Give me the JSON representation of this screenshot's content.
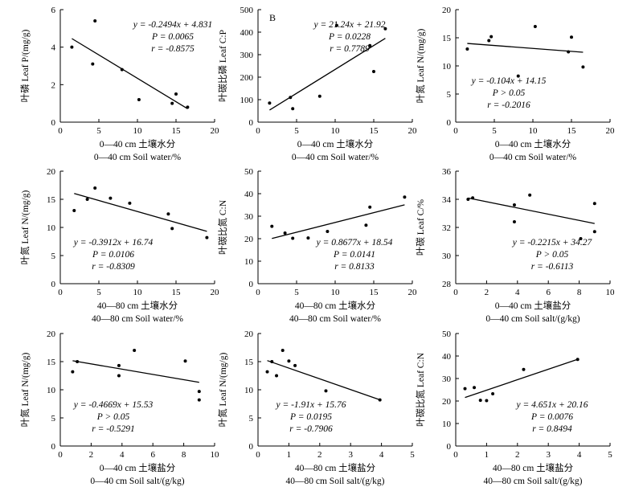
{
  "chart_data": [
    {
      "type": "scatter",
      "tag": "",
      "ylabel": "叶磷 Leaf P/(mg/g)",
      "xlabel_cn": "0—40 cm 土壤水分",
      "xlabel_en": "0—40 cm Soil water/%",
      "xlim": [
        0,
        20
      ],
      "ylim": [
        0,
        6
      ],
      "xticks": [
        0,
        5,
        10,
        15,
        20
      ],
      "yticks": [
        0,
        2,
        4,
        6
      ],
      "points": [
        [
          1.5,
          4.0
        ],
        [
          4.2,
          3.1
        ],
        [
          4.5,
          5.4
        ],
        [
          8.0,
          2.8
        ],
        [
          10.2,
          1.2
        ],
        [
          14.5,
          1.0
        ],
        [
          15.0,
          1.5
        ],
        [
          16.5,
          0.8
        ]
      ],
      "fit": {
        "slope": -0.2494,
        "intercept": 4.831,
        "x": [
          1.5,
          16.5
        ]
      },
      "stats": [
        "y = -0.2494x + 4.831",
        "P = 0.0065",
        "r = -0.8575"
      ],
      "stats_pos": "top-right"
    },
    {
      "type": "scatter",
      "tag": "B",
      "ylabel": "叶碳比磷 Leaf C:P",
      "xlabel_cn": "0—40 cm 土壤水分",
      "xlabel_en": "0—40 cm Soil water/%",
      "xlim": [
        0,
        20
      ],
      "ylim": [
        0,
        500
      ],
      "xticks": [
        0,
        5,
        10,
        15,
        20
      ],
      "yticks": [
        0,
        100,
        200,
        300,
        400,
        500
      ],
      "points": [
        [
          1.5,
          85
        ],
        [
          4.2,
          110
        ],
        [
          4.5,
          60
        ],
        [
          8.0,
          115
        ],
        [
          10.2,
          430
        ],
        [
          14.5,
          340
        ],
        [
          15.0,
          225
        ],
        [
          16.5,
          415
        ]
      ],
      "fit": {
        "slope": 21.24,
        "intercept": 21.92,
        "x": [
          1.5,
          16.5
        ]
      },
      "stats": [
        "y = 21.24x + 21.92",
        "P = 0.0228",
        "r = 0.7789"
      ],
      "stats_pos": "top-left"
    },
    {
      "type": "scatter",
      "tag": "",
      "ylabel": "叶氮 Leaf N/(mg/g)",
      "xlabel_cn": "0—40 cm 土壤水分",
      "xlabel_en": "0—40 cm Soil water/%",
      "xlim": [
        0,
        20
      ],
      "ylim": [
        0,
        20
      ],
      "xticks": [
        0,
        5,
        10,
        15,
        20
      ],
      "yticks": [
        0,
        5,
        10,
        15,
        20
      ],
      "points": [
        [
          1.5,
          13.0
        ],
        [
          4.3,
          14.5
        ],
        [
          4.6,
          15.2
        ],
        [
          8.1,
          8.2
        ],
        [
          10.3,
          17.0
        ],
        [
          14.6,
          12.5
        ],
        [
          15.0,
          15.1
        ],
        [
          16.5,
          9.8
        ]
      ],
      "fit": {
        "slope": -0.104,
        "intercept": 14.15,
        "x": [
          1.5,
          16.5
        ]
      },
      "stats": [
        "y = -0.104x + 14.15",
        "P > 0.05",
        "r = -0.2016"
      ],
      "stats_pos": "bottom-left"
    },
    {
      "type": "scatter",
      "tag": "",
      "ylabel": "叶氮 Leaf N/(mg/g)",
      "xlabel_cn": "40—80 cm 土壤水分",
      "xlabel_en": "40—80 cm Soil water/%",
      "xlim": [
        0,
        20
      ],
      "ylim": [
        0,
        20
      ],
      "xticks": [
        0,
        5,
        10,
        15,
        20
      ],
      "yticks": [
        0,
        5,
        10,
        15,
        20
      ],
      "points": [
        [
          1.8,
          13.0
        ],
        [
          3.5,
          15.0
        ],
        [
          4.5,
          17.0
        ],
        [
          6.5,
          15.2
        ],
        [
          9.0,
          14.3
        ],
        [
          14.0,
          12.4
        ],
        [
          14.5,
          9.8
        ],
        [
          19.0,
          8.2
        ]
      ],
      "fit": {
        "slope": -0.3912,
        "intercept": 16.74,
        "x": [
          1.8,
          19.0
        ]
      },
      "stats": [
        "y = -0.3912x + 16.74",
        "P = 0.0106",
        "r = -0.8309"
      ],
      "stats_pos": "bottom-left"
    },
    {
      "type": "scatter",
      "tag": "",
      "ylabel": "叶碳比氮 C:N",
      "xlabel_cn": "40—80 cm 土壤水分",
      "xlabel_en": "40—80 cm Soil water/%",
      "xlim": [
        0,
        20
      ],
      "ylim": [
        0,
        50
      ],
      "xticks": [
        0,
        5,
        10,
        15,
        20
      ],
      "yticks": [
        0,
        10,
        20,
        30,
        40,
        50
      ],
      "points": [
        [
          1.8,
          25.5
        ],
        [
          3.5,
          22.5
        ],
        [
          4.5,
          20.2
        ],
        [
          6.5,
          20.3
        ],
        [
          9.0,
          23.2
        ],
        [
          14.0,
          26.0
        ],
        [
          14.5,
          34.0
        ],
        [
          19.0,
          38.5
        ]
      ],
      "fit": {
        "slope": 0.8677,
        "intercept": 18.54,
        "x": [
          1.8,
          19.0
        ]
      },
      "stats": [
        "y = 0.8677x + 18.54",
        "P = 0.0141",
        "r = 0.8133"
      ],
      "stats_pos": "bottom-right"
    },
    {
      "type": "scatter",
      "tag": "",
      "ylabel": "叶碳 Leaf C/%",
      "xlabel_cn": "0—40 cm 土壤盐分",
      "xlabel_en": "0—40 cm Soil salt/(g/kg)",
      "xlim": [
        0,
        10
      ],
      "ylim": [
        28,
        36
      ],
      "xticks": [
        0,
        2,
        4,
        6,
        8,
        10
      ],
      "yticks": [
        28,
        30,
        32,
        34,
        36
      ],
      "points": [
        [
          0.8,
          34.0
        ],
        [
          1.1,
          34.1
        ],
        [
          3.8,
          33.6
        ],
        [
          3.8,
          32.4
        ],
        [
          4.8,
          34.3
        ],
        [
          8.1,
          31.2
        ],
        [
          9.0,
          33.7
        ],
        [
          9.0,
          31.7
        ]
      ],
      "fit": {
        "slope": -0.2215,
        "intercept": 34.27,
        "x": [
          0.8,
          9.0
        ]
      },
      "stats": [
        "y = -0.2215x + 34.27",
        "P > 0.05",
        "r = -0.6113"
      ],
      "stats_pos": "bottom-right"
    },
    {
      "type": "scatter",
      "tag": "",
      "ylabel": "叶氮 Leaf N/(mg/g)",
      "xlabel_cn": "0—40 cm 土壤盐分",
      "xlabel_en": "0—40 cm Soil salt/(g/kg)",
      "xlim": [
        0,
        10
      ],
      "ylim": [
        0,
        20
      ],
      "xticks": [
        0,
        2,
        4,
        6,
        8,
        10
      ],
      "yticks": [
        0,
        5,
        10,
        15,
        20
      ],
      "points": [
        [
          0.8,
          13.2
        ],
        [
          1.1,
          15.0
        ],
        [
          3.8,
          14.3
        ],
        [
          3.8,
          12.5
        ],
        [
          4.8,
          17.0
        ],
        [
          8.1,
          15.1
        ],
        [
          9.0,
          9.7
        ],
        [
          9.0,
          8.2
        ]
      ],
      "fit": {
        "slope": -0.4669,
        "intercept": 15.53,
        "x": [
          0.8,
          9.0
        ]
      },
      "stats": [
        "y = -0.4669x + 15.53",
        "P > 0.05",
        "r = -0.5291"
      ],
      "stats_pos": "bottom-left"
    },
    {
      "type": "scatter",
      "tag": "",
      "ylabel": "叶氮 Leaf N/(mg/g)",
      "xlabel_cn": "40—80 cm 土壤盐分",
      "xlabel_en": "40—80 cm Soil salt/(g/kg)",
      "xlim": [
        0,
        5
      ],
      "ylim": [
        0,
        20
      ],
      "xticks": [
        0,
        1,
        2,
        3,
        4,
        5
      ],
      "yticks": [
        0,
        5,
        10,
        15,
        20
      ],
      "points": [
        [
          0.3,
          13.2
        ],
        [
          0.45,
          15.0
        ],
        [
          0.6,
          12.5
        ],
        [
          0.8,
          17.0
        ],
        [
          1.0,
          15.1
        ],
        [
          1.2,
          14.3
        ],
        [
          2.2,
          9.8
        ],
        [
          3.95,
          8.2
        ]
      ],
      "fit": {
        "slope": -1.91,
        "intercept": 15.76,
        "x": [
          0.3,
          3.95
        ]
      },
      "stats": [
        "y = -1.91x + 15.76",
        "P = 0.0195",
        "r = -0.7906"
      ],
      "stats_pos": "bottom-left"
    },
    {
      "type": "scatter",
      "tag": "",
      "ylabel": "叶碳比氮 Leaf C:N",
      "xlabel_cn": "40—80 cm 土壤盐分",
      "xlabel_en": "40—80 cm Soil salt/(g/kg)",
      "xlim": [
        0,
        5
      ],
      "ylim": [
        0,
        50
      ],
      "xticks": [
        0,
        1,
        2,
        3,
        4,
        5
      ],
      "yticks": [
        0,
        10,
        20,
        30,
        40,
        50
      ],
      "points": [
        [
          0.3,
          25.5
        ],
        [
          0.6,
          26.0
        ],
        [
          0.8,
          20.3
        ],
        [
          1.0,
          20.2
        ],
        [
          1.2,
          23.2
        ],
        [
          2.2,
          34.0
        ],
        [
          3.95,
          38.5
        ]
      ],
      "fit": {
        "slope": 4.651,
        "intercept": 20.16,
        "x": [
          0.3,
          3.95
        ]
      },
      "stats": [
        "y = 4.651x + 20.16",
        "P = 0.0076",
        "r = 0.8494"
      ],
      "stats_pos": "bottom-right"
    }
  ]
}
